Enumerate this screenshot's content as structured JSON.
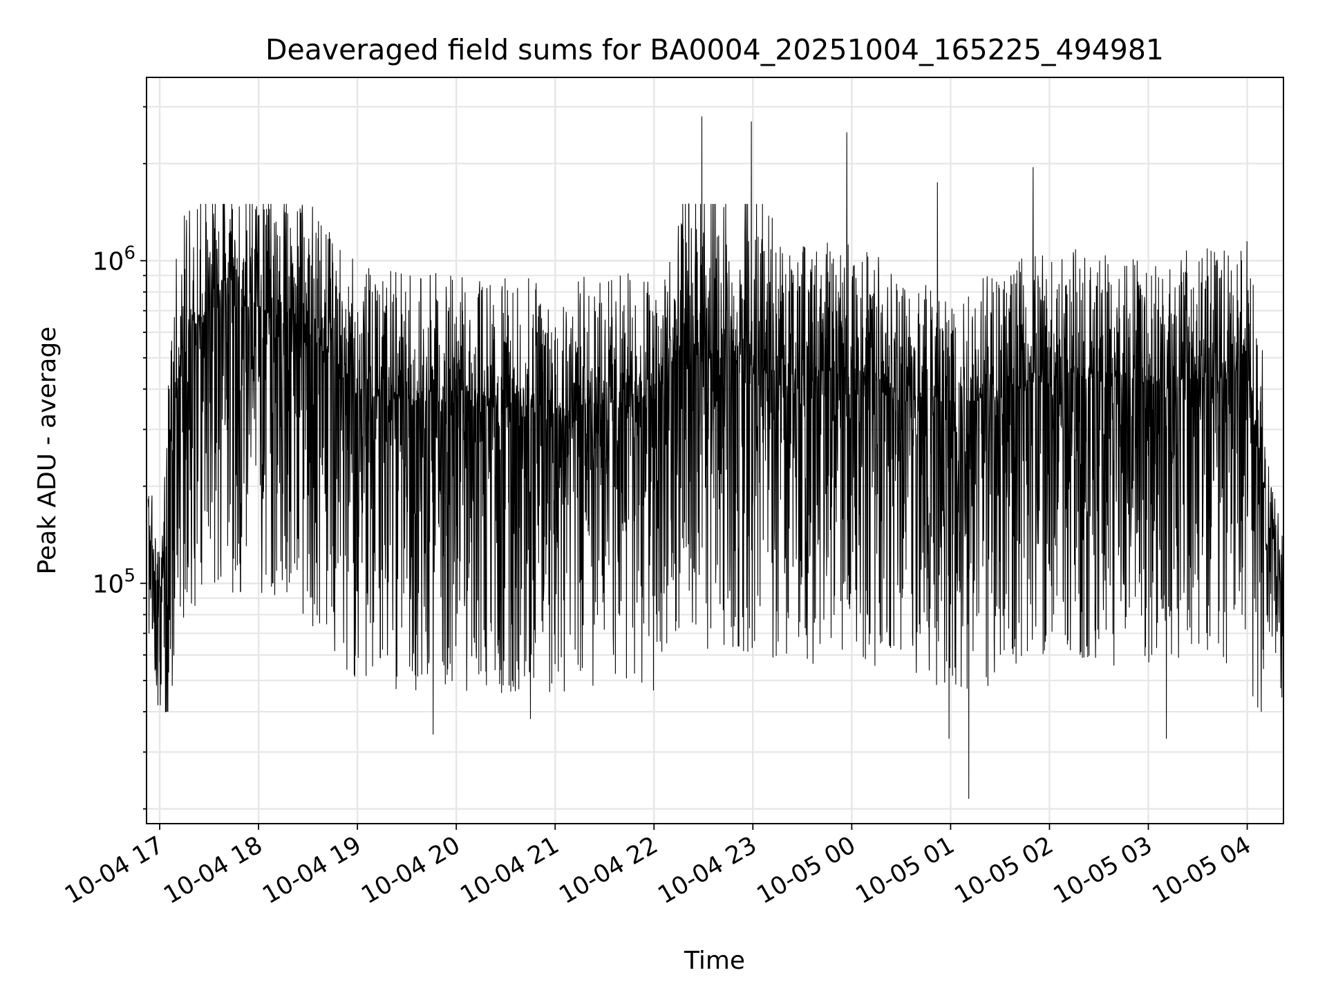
{
  "chart_data": {
    "type": "line",
    "title": "Deaveraged field sums for BA0004_20251004_165225_494981",
    "xlabel": "Time",
    "ylabel": "Peak ADU - average",
    "yscale": "log",
    "y_tick_labels": [
      {
        "base": "10",
        "exp": "5",
        "value": 100000
      },
      {
        "base": "10",
        "exp": "6",
        "value": 1000000
      }
    ],
    "x_tick_labels": [
      "10-04 17",
      "10-04 18",
      "10-04 19",
      "10-04 20",
      "10-04 21",
      "10-04 22",
      "10-04 23",
      "10-05 00",
      "10-05 01",
      "10-05 02",
      "10-05 03",
      "10-05 04"
    ],
    "xlim": [
      "2025-10-04 16:52",
      "2025-10-05 04:22"
    ],
    "ylim": [
      18000,
      3700000
    ],
    "grid": true,
    "line_color": "#000000",
    "grid_color": "#e6e6e6",
    "series": [
      {
        "x": [
          "2025-10-04 16:52",
          "2025-10-04 17:00",
          "2025-10-04 17:10",
          "2025-10-04 17:20",
          "2025-10-04 17:30",
          "2025-10-04 17:45",
          "2025-10-04 18:00",
          "2025-10-04 18:15",
          "2025-10-04 18:30",
          "2025-10-04 18:45",
          "2025-10-04 19:00",
          "2025-10-04 19:30",
          "2025-10-04 20:00",
          "2025-10-04 20:30",
          "2025-10-04 21:00",
          "2025-10-04 21:30",
          "2025-10-04 22:00",
          "2025-10-04 22:15",
          "2025-10-04 22:30",
          "2025-10-04 23:00",
          "2025-10-04 23:30",
          "2025-10-05 00:00",
          "2025-10-05 00:30",
          "2025-10-05 01:00",
          "2025-10-05 01:30",
          "2025-10-05 02:00",
          "2025-10-05 02:30",
          "2025-10-05 03:00",
          "2025-10-05 03:30",
          "2025-10-05 04:00",
          "2025-10-05 04:10",
          "2025-10-05 04:22"
        ],
        "values": [
          180000,
          85000,
          420000,
          620000,
          700000,
          720000,
          710000,
          680000,
          600000,
          500000,
          380000,
          370000,
          360000,
          350000,
          355000,
          360000,
          370000,
          520000,
          500000,
          470000,
          440000,
          470000,
          380000,
          360000,
          380000,
          440000,
          430000,
          420000,
          430000,
          460000,
          200000,
          95000
        ]
      }
    ],
    "notable_peaks": [
      {
        "x": "2025-10-04 22:29",
        "y": 2800000
      },
      {
        "x": "2025-10-04 22:59",
        "y": 2700000
      },
      {
        "x": "2025-10-04 23:57",
        "y": 2500000
      },
      {
        "x": "2025-10-05 00:52",
        "y": 1750000
      },
      {
        "x": "2025-10-05 01:50",
        "y": 1950000
      },
      {
        "x": "2025-10-04 17:15",
        "y": 1380000
      }
    ],
    "notable_dips": [
      {
        "x": "2025-10-05 01:11",
        "y": 21500
      },
      {
        "x": "2025-10-04 19:46",
        "y": 34000
      },
      {
        "x": "2025-10-05 00:59",
        "y": 33000
      },
      {
        "x": "2025-10-05 03:11",
        "y": 33000
      },
      {
        "x": "2025-10-04 20:45",
        "y": 38000
      }
    ]
  }
}
